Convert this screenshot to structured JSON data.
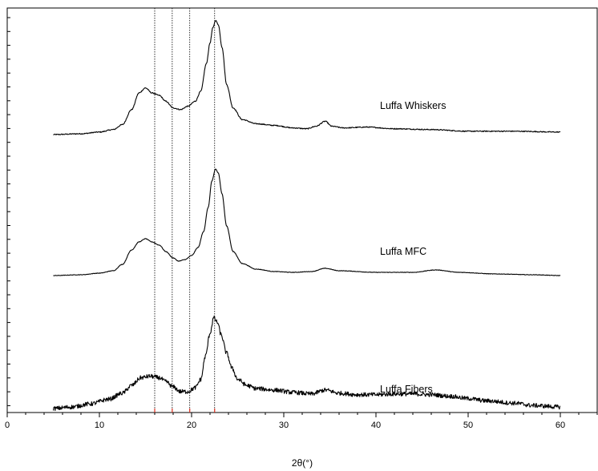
{
  "chart_data": {
    "type": "line",
    "title": "",
    "xlabel": "2θ(°)",
    "ylabel": "",
    "xlim": [
      0,
      64
    ],
    "y_axis_ticks_labeled": false,
    "x_ticks": [
      0,
      10,
      20,
      30,
      40,
      50,
      60
    ],
    "x_tick_labels": [
      "0",
      "10",
      "20",
      "30",
      "40",
      "50",
      "60"
    ],
    "reference_lines_x": [
      16.0,
      17.9,
      19.8,
      22.5
    ],
    "reference_line_color": "#000000",
    "reference_tick_color": "#e0301e",
    "line_color": "#000000",
    "grid": false,
    "legend": "none",
    "series": [
      {
        "name": "Luffa Whiskers",
        "noise": 0.6,
        "points": [
          [
            5,
            0
          ],
          [
            8,
            1
          ],
          [
            10,
            3
          ],
          [
            11.5,
            6
          ],
          [
            12.5,
            12
          ],
          [
            13.5,
            30
          ],
          [
            14.3,
            50
          ],
          [
            15,
            56
          ],
          [
            15.7,
            50
          ],
          [
            16.5,
            47
          ],
          [
            17.2,
            40
          ],
          [
            18,
            32
          ],
          [
            18.8,
            30
          ],
          [
            19.6,
            34
          ],
          [
            20.4,
            40
          ],
          [
            21,
            52
          ],
          [
            21.6,
            85
          ],
          [
            22,
            110
          ],
          [
            22.3,
            128
          ],
          [
            22.6,
            137
          ],
          [
            22.9,
            132
          ],
          [
            23.3,
            105
          ],
          [
            23.8,
            60
          ],
          [
            24.5,
            32
          ],
          [
            25.5,
            18
          ],
          [
            27,
            13
          ],
          [
            29,
            11
          ],
          [
            31,
            8
          ],
          [
            32.5,
            7
          ],
          [
            33.5,
            10
          ],
          [
            34.5,
            16
          ],
          [
            35.2,
            10
          ],
          [
            36.5,
            8
          ],
          [
            39,
            9
          ],
          [
            42,
            7
          ],
          [
            46,
            6
          ],
          [
            50,
            4
          ],
          [
            55,
            4
          ],
          [
            60,
            3
          ]
        ]
      },
      {
        "name": "Luffa MFC",
        "noise": 0.3,
        "points": [
          [
            5,
            0
          ],
          [
            8,
            1
          ],
          [
            10,
            3
          ],
          [
            11.5,
            6
          ],
          [
            12.5,
            14
          ],
          [
            13.5,
            32
          ],
          [
            14.3,
            42
          ],
          [
            15,
            46
          ],
          [
            15.7,
            42
          ],
          [
            16.5,
            38
          ],
          [
            17.2,
            30
          ],
          [
            18,
            22
          ],
          [
            18.6,
            18
          ],
          [
            19.3,
            20
          ],
          [
            20,
            25
          ],
          [
            20.7,
            35
          ],
          [
            21.3,
            55
          ],
          [
            21.8,
            85
          ],
          [
            22.2,
            118
          ],
          [
            22.6,
            133
          ],
          [
            22.9,
            128
          ],
          [
            23.3,
            102
          ],
          [
            23.8,
            62
          ],
          [
            24.5,
            30
          ],
          [
            25.5,
            15
          ],
          [
            27,
            8
          ],
          [
            29,
            5
          ],
          [
            31,
            4
          ],
          [
            33,
            5
          ],
          [
            34.5,
            9
          ],
          [
            36,
            6
          ],
          [
            40,
            4
          ],
          [
            44,
            4
          ],
          [
            46.5,
            7
          ],
          [
            49,
            4
          ],
          [
            53,
            2
          ],
          [
            57,
            1
          ],
          [
            60,
            0
          ]
        ]
      },
      {
        "name": "Luffa Fibers",
        "noise": 2.8,
        "points": [
          [
            5,
            0
          ],
          [
            7,
            2
          ],
          [
            9,
            6
          ],
          [
            11,
            12
          ],
          [
            12.5,
            20
          ],
          [
            13.5,
            30
          ],
          [
            14.5,
            40
          ],
          [
            15.5,
            42
          ],
          [
            16.5,
            40
          ],
          [
            17.2,
            35
          ],
          [
            18,
            28
          ],
          [
            18.8,
            22
          ],
          [
            19.6,
            22
          ],
          [
            20.4,
            27
          ],
          [
            21,
            38
          ],
          [
            21.5,
            68
          ],
          [
            22,
            98
          ],
          [
            22.4,
            118
          ],
          [
            22.8,
            112
          ],
          [
            23.2,
            96
          ],
          [
            23.8,
            72
          ],
          [
            24.4,
            52
          ],
          [
            25,
            38
          ],
          [
            26,
            30
          ],
          [
            27,
            26
          ],
          [
            29,
            24
          ],
          [
            31,
            21
          ],
          [
            33,
            19
          ],
          [
            34.5,
            24
          ],
          [
            36,
            20
          ],
          [
            38,
            18
          ],
          [
            40,
            18
          ],
          [
            42,
            19
          ],
          [
            44,
            19
          ],
          [
            46,
            18
          ],
          [
            48,
            16
          ],
          [
            50,
            13
          ],
          [
            52,
            10
          ],
          [
            55,
            7
          ],
          [
            57,
            4
          ],
          [
            60,
            2
          ]
        ]
      }
    ]
  }
}
